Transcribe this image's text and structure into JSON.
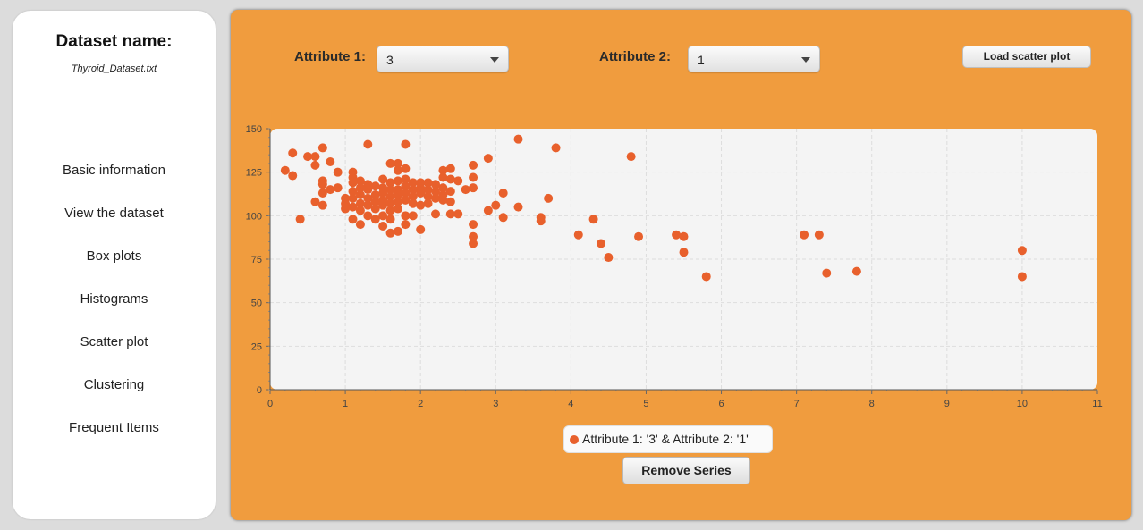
{
  "sidebar": {
    "title": "Dataset name:",
    "filename": "Thyroid_Dataset.txt",
    "items": [
      {
        "label": "Basic information"
      },
      {
        "label": "View the dataset"
      },
      {
        "label": "Box plots"
      },
      {
        "label": "Histograms"
      },
      {
        "label": "Scatter plot"
      },
      {
        "label": "Clustering"
      },
      {
        "label": "Frequent Items"
      }
    ]
  },
  "controls": {
    "attr1_label": "Attribute 1:",
    "attr1_value": "3",
    "attr2_label": "Attribute 2:",
    "attr2_value": "1",
    "load_label": "Load scatter plot",
    "remove_label": "Remove Series"
  },
  "colors": {
    "panel": "#f09c3e",
    "point": "#e8602c",
    "plot_bg": "#f4f4f4"
  },
  "chart_data": {
    "type": "scatter",
    "title": "",
    "xlabel": "",
    "ylabel": "",
    "xlim": [
      0,
      11
    ],
    "ylim": [
      0,
      150
    ],
    "x_ticks": [
      "0",
      "1",
      "2",
      "3",
      "4",
      "5",
      "6",
      "7",
      "8",
      "9",
      "10",
      "11"
    ],
    "y_ticks": [
      "0",
      "25",
      "50",
      "75",
      "100",
      "125",
      "150"
    ],
    "grid": true,
    "legend_position": "bottom-center",
    "series": [
      {
        "name": "Attribute 1: '3' & Attribute 2: '1'",
        "points": [
          [
            0.2,
            126
          ],
          [
            0.3,
            136
          ],
          [
            0.3,
            123
          ],
          [
            0.4,
            98
          ],
          [
            0.5,
            134
          ],
          [
            0.6,
            134
          ],
          [
            0.6,
            129
          ],
          [
            0.6,
            108
          ],
          [
            0.7,
            139
          ],
          [
            0.7,
            120
          ],
          [
            0.7,
            118
          ],
          [
            0.7,
            113
          ],
          [
            0.7,
            106
          ],
          [
            0.8,
            131
          ],
          [
            0.8,
            115
          ],
          [
            0.9,
            125
          ],
          [
            0.9,
            116
          ],
          [
            1.0,
            110
          ],
          [
            1.0,
            107
          ],
          [
            1.0,
            104
          ],
          [
            1.1,
            125
          ],
          [
            1.1,
            122
          ],
          [
            1.1,
            119
          ],
          [
            1.1,
            114
          ],
          [
            1.1,
            110
          ],
          [
            1.1,
            105
          ],
          [
            1.1,
            98
          ],
          [
            1.2,
            120
          ],
          [
            1.2,
            116
          ],
          [
            1.2,
            112
          ],
          [
            1.2,
            107
          ],
          [
            1.2,
            103
          ],
          [
            1.2,
            95
          ],
          [
            1.3,
            141
          ],
          [
            1.3,
            118
          ],
          [
            1.3,
            115
          ],
          [
            1.3,
            110
          ],
          [
            1.3,
            106
          ],
          [
            1.3,
            100
          ],
          [
            1.4,
            117
          ],
          [
            1.4,
            112
          ],
          [
            1.4,
            108
          ],
          [
            1.4,
            104
          ],
          [
            1.4,
            98
          ],
          [
            1.5,
            121
          ],
          [
            1.5,
            116
          ],
          [
            1.5,
            113
          ],
          [
            1.5,
            109
          ],
          [
            1.5,
            106
          ],
          [
            1.5,
            100
          ],
          [
            1.5,
            94
          ],
          [
            1.6,
            130
          ],
          [
            1.6,
            119
          ],
          [
            1.6,
            115
          ],
          [
            1.6,
            111
          ],
          [
            1.6,
            107
          ],
          [
            1.6,
            103
          ],
          [
            1.6,
            98
          ],
          [
            1.6,
            90
          ],
          [
            1.7,
            130
          ],
          [
            1.7,
            126
          ],
          [
            1.7,
            120
          ],
          [
            1.7,
            115
          ],
          [
            1.7,
            112
          ],
          [
            1.7,
            108
          ],
          [
            1.7,
            104
          ],
          [
            1.7,
            91
          ],
          [
            1.8,
            141
          ],
          [
            1.8,
            127
          ],
          [
            1.8,
            121
          ],
          [
            1.8,
            117
          ],
          [
            1.8,
            113
          ],
          [
            1.8,
            109
          ],
          [
            1.8,
            100
          ],
          [
            1.8,
            95
          ],
          [
            1.9,
            119
          ],
          [
            1.9,
            115
          ],
          [
            1.9,
            111
          ],
          [
            1.9,
            107
          ],
          [
            1.9,
            100
          ],
          [
            2.0,
            119
          ],
          [
            2.0,
            116
          ],
          [
            2.0,
            113
          ],
          [
            2.0,
            106
          ],
          [
            2.0,
            92
          ],
          [
            2.1,
            119
          ],
          [
            2.1,
            115
          ],
          [
            2.1,
            111
          ],
          [
            2.1,
            107
          ],
          [
            2.2,
            118
          ],
          [
            2.2,
            114
          ],
          [
            2.2,
            110
          ],
          [
            2.2,
            101
          ],
          [
            2.3,
            126
          ],
          [
            2.3,
            122
          ],
          [
            2.3,
            116
          ],
          [
            2.3,
            112
          ],
          [
            2.3,
            109
          ],
          [
            2.4,
            127
          ],
          [
            2.4,
            121
          ],
          [
            2.4,
            114
          ],
          [
            2.4,
            108
          ],
          [
            2.4,
            101
          ],
          [
            2.5,
            120
          ],
          [
            2.5,
            101
          ],
          [
            2.6,
            115
          ],
          [
            2.7,
            129
          ],
          [
            2.7,
            122
          ],
          [
            2.7,
            116
          ],
          [
            2.7,
            95
          ],
          [
            2.7,
            88
          ],
          [
            2.7,
            84
          ],
          [
            2.9,
            133
          ],
          [
            2.9,
            103
          ],
          [
            3.0,
            106
          ],
          [
            3.1,
            113
          ],
          [
            3.1,
            99
          ],
          [
            3.3,
            144
          ],
          [
            3.3,
            105
          ],
          [
            3.6,
            99
          ],
          [
            3.6,
            97
          ],
          [
            3.7,
            110
          ],
          [
            3.8,
            139
          ],
          [
            4.1,
            89
          ],
          [
            4.3,
            98
          ],
          [
            4.4,
            84
          ],
          [
            4.5,
            76
          ],
          [
            4.8,
            134
          ],
          [
            4.9,
            88
          ],
          [
            5.4,
            89
          ],
          [
            5.5,
            88
          ],
          [
            5.5,
            79
          ],
          [
            5.8,
            65
          ],
          [
            7.1,
            89
          ],
          [
            7.3,
            89
          ],
          [
            7.4,
            67
          ],
          [
            7.8,
            68
          ],
          [
            10.0,
            80
          ],
          [
            10.0,
            65
          ]
        ]
      }
    ]
  }
}
